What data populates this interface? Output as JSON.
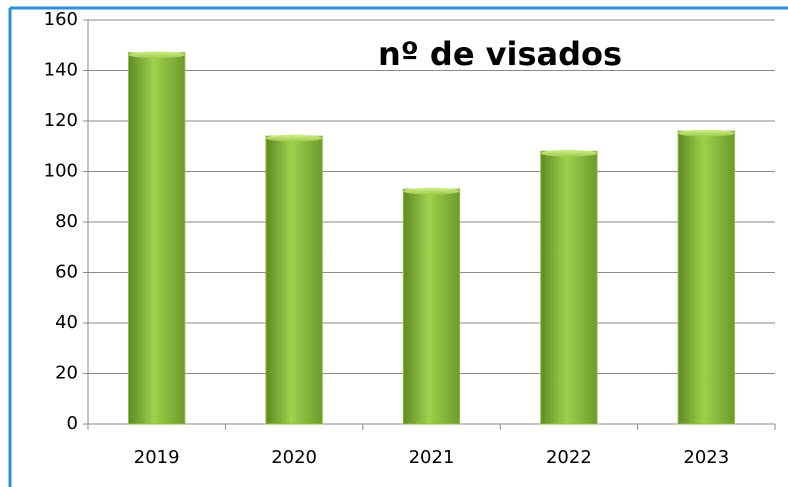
{
  "chart_data": {
    "type": "bar",
    "title": "nº de visados",
    "categories": [
      "2019",
      "2020",
      "2021",
      "2022",
      "2023"
    ],
    "values": [
      147,
      114,
      93,
      108,
      116
    ],
    "color": "#8cbf3f",
    "ylim": [
      0,
      160
    ],
    "yticks": [
      0,
      20,
      40,
      60,
      80,
      100,
      120,
      140,
      160
    ],
    "grid": true
  }
}
